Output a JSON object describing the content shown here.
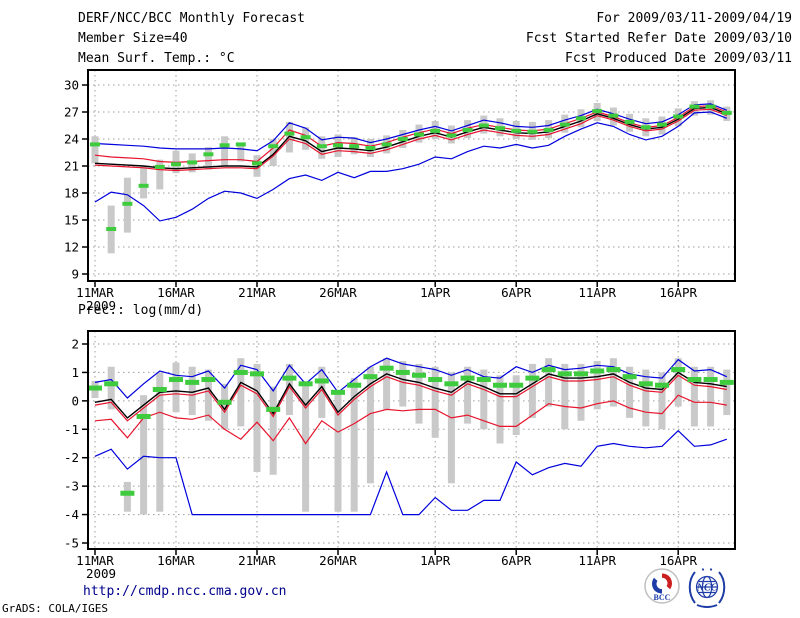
{
  "header": {
    "title": "DERF/NCC/BCC Monthly Forecast",
    "member_size": "Member Size=40",
    "panel1_label": "Mean Surf. Temp.: °C",
    "for_range": "For 2009/03/11-2009/04/19",
    "fcst_started": "Fcst Started Refer Date 2009/03/10",
    "fcst_produced": "Fcst Produced Date 2009/03/11"
  },
  "panel2_label": "Prec.: log(mm/d)",
  "footer": {
    "url": "http://cmdp.ncc.cma.gov.cn",
    "grads_credit": "GrADS: COLA/IGES",
    "logos": [
      {
        "label": "BCC"
      },
      {
        "label": "NCC"
      }
    ]
  },
  "colors": {
    "line_blue": "#0000dd",
    "line_red": "#e8142d",
    "line_black": "#000000",
    "obs_green": "#3ecc3e",
    "bar_gray": "#c9c9c9",
    "grid_gray": "#9e9e9e",
    "url_blue": "#00008b",
    "logo_blue": "#1f3da6",
    "logo_red": "#cc2020"
  },
  "chart_data": [
    {
      "type": "line",
      "title": "Mean Surf. Temp.: °C",
      "ylabel": "°C",
      "grid": true,
      "legend": "none",
      "ylim": [
        8.2,
        31.7
      ],
      "y_ticks": [
        9,
        12,
        15,
        18,
        21,
        24,
        27,
        30
      ],
      "x_tick_labels": [
        "11MAR",
        "16MAR",
        "21MAR",
        "26MAR",
        "1APR",
        "6APR",
        "11APR",
        "16APR"
      ],
      "x_tick_days": [
        0,
        5,
        10,
        15,
        21,
        26,
        31,
        36
      ],
      "x_sub_label": "2009",
      "dates": [
        "11MAR",
        "12MAR",
        "13MAR",
        "14MAR",
        "15MAR",
        "16MAR",
        "17MAR",
        "18MAR",
        "19MAR",
        "20MAR",
        "21MAR",
        "22MAR",
        "23MAR",
        "24MAR",
        "25MAR",
        "26MAR",
        "27MAR",
        "28MAR",
        "29MAR",
        "30MAR",
        "31MAR",
        "1APR",
        "2APR",
        "3APR",
        "4APR",
        "5APR",
        "6APR",
        "7APR",
        "8APR",
        "9APR",
        "10APR",
        "11APR",
        "12APR",
        "13APR",
        "14APR",
        "15APR",
        "16APR",
        "17APR",
        "18APR",
        "19APR"
      ],
      "series": [
        {
          "name": "upper-blue-envelope",
          "color": "#0000dd",
          "width": 1.2,
          "values": [
            23.5,
            23.4,
            23.3,
            23.2,
            23.0,
            22.9,
            22.9,
            22.9,
            23.0,
            22.9,
            22.7,
            23.8,
            25.8,
            25.2,
            23.9,
            24.2,
            24.1,
            23.6,
            24.0,
            24.5,
            25.0,
            25.4,
            24.9,
            25.5,
            26.1,
            25.8,
            25.4,
            25.3,
            25.5,
            26.1,
            26.6,
            27.3,
            26.8,
            26.2,
            25.7,
            25.9,
            26.7,
            27.8,
            27.9,
            27.2
          ]
        },
        {
          "name": "upper-red-band",
          "color": "#e8142d",
          "width": 1.2,
          "values": [
            22.2,
            22.0,
            21.9,
            21.8,
            21.5,
            21.4,
            21.5,
            21.6,
            21.7,
            21.7,
            21.5,
            23.0,
            25.0,
            24.4,
            23.2,
            23.6,
            23.5,
            23.2,
            23.6,
            24.2,
            24.7,
            25.1,
            24.6,
            25.2,
            25.6,
            25.3,
            25.0,
            24.9,
            25.1,
            25.7,
            26.3,
            27.0,
            26.5,
            25.8,
            25.3,
            25.5,
            26.4,
            27.6,
            27.7,
            27.0
          ]
        },
        {
          "name": "ensemble-mean-black",
          "color": "#000000",
          "width": 1.4,
          "values": [
            21.3,
            21.2,
            21.1,
            21.0,
            20.8,
            20.7,
            20.8,
            20.9,
            21.0,
            21.0,
            20.9,
            22.3,
            24.3,
            23.8,
            22.6,
            23.0,
            22.9,
            22.7,
            23.1,
            23.7,
            24.3,
            24.7,
            24.2,
            24.8,
            25.3,
            25.0,
            24.7,
            24.6,
            24.8,
            25.4,
            26.0,
            26.8,
            26.3,
            25.6,
            25.1,
            25.3,
            26.2,
            27.4,
            27.5,
            26.8
          ]
        },
        {
          "name": "lower-red-band",
          "color": "#e8142d",
          "width": 1.2,
          "values": [
            21.1,
            21.0,
            20.9,
            20.8,
            20.6,
            20.5,
            20.6,
            20.7,
            20.8,
            20.8,
            20.7,
            22.1,
            24.0,
            23.5,
            22.3,
            22.7,
            22.6,
            22.4,
            22.8,
            23.4,
            24.0,
            24.4,
            23.9,
            24.5,
            25.0,
            24.7,
            24.4,
            24.3,
            24.5,
            25.1,
            25.7,
            26.6,
            26.1,
            25.4,
            24.9,
            25.1,
            26.0,
            27.2,
            27.3,
            26.6
          ]
        },
        {
          "name": "lower-blue-envelope",
          "color": "#0000dd",
          "width": 1.2,
          "values": [
            17.0,
            18.1,
            17.8,
            16.6,
            14.9,
            15.3,
            16.2,
            17.4,
            18.2,
            18.0,
            17.4,
            18.4,
            19.6,
            20.0,
            19.4,
            20.3,
            19.7,
            20.4,
            20.4,
            20.7,
            21.2,
            22.0,
            21.8,
            22.6,
            23.2,
            23.0,
            23.4,
            23.0,
            23.3,
            24.3,
            25.1,
            25.8,
            25.4,
            24.5,
            23.9,
            24.3,
            25.4,
            26.9,
            27.0,
            26.3
          ]
        }
      ],
      "bars": {
        "name": "gray-spread-bars",
        "color": "#c9c9c9",
        "lo": [
          21.3,
          11.3,
          13.6,
          17.4,
          18.4,
          20.2,
          20.3,
          20.6,
          21.0,
          21.5,
          19.8,
          21.0,
          22.5,
          22.8,
          21.8,
          22.0,
          22.3,
          22.0,
          22.4,
          23.0,
          23.6,
          24.0,
          23.5,
          24.1,
          24.6,
          24.3,
          24.0,
          23.9,
          24.1,
          24.7,
          25.3,
          26.0,
          25.5,
          24.8,
          24.3,
          24.5,
          25.4,
          26.6,
          26.7,
          26.0
        ],
        "hi": [
          24.3,
          16.6,
          19.7,
          21.0,
          21.7,
          22.7,
          22.4,
          23.1,
          24.3,
          23.5,
          22.2,
          24.0,
          25.9,
          25.3,
          24.3,
          24.5,
          24.2,
          24.0,
          24.4,
          25.0,
          25.6,
          26.0,
          25.5,
          26.1,
          26.6,
          26.3,
          26.0,
          25.9,
          26.1,
          26.7,
          27.3,
          28.0,
          27.5,
          26.8,
          26.3,
          26.5,
          27.4,
          28.2,
          28.3,
          27.6
        ]
      },
      "dashes": {
        "name": "green-dash-markers",
        "color": "#3ecc3e",
        "values": [
          23.4,
          14.0,
          16.8,
          18.8,
          20.9,
          21.2,
          21.4,
          22.3,
          23.3,
          23.4,
          21.3,
          23.2,
          24.6,
          24.2,
          23.2,
          23.3,
          23.2,
          23.0,
          23.4,
          24.0,
          24.5,
          24.9,
          24.4,
          25.0,
          25.5,
          25.2,
          24.9,
          24.8,
          25.0,
          25.6,
          26.3,
          27.1,
          26.6,
          25.9,
          25.3,
          25.6,
          26.5,
          27.6,
          27.6,
          26.9
        ]
      }
    },
    {
      "type": "line",
      "title": "Prec.: log(mm/d)",
      "ylabel": "log(mm/d)",
      "grid": true,
      "legend": "none",
      "ylim": [
        -5.2,
        2.5
      ],
      "y_ticks": [
        -5,
        -4,
        -3,
        -2,
        -1,
        0,
        1,
        2
      ],
      "x_tick_labels": [
        "11MAR",
        "16MAR",
        "21MAR",
        "26MAR",
        "1APR",
        "6APR",
        "11APR",
        "16APR"
      ],
      "x_tick_days": [
        0,
        5,
        10,
        15,
        21,
        26,
        31,
        36
      ],
      "x_sub_label": "2009",
      "dates": [
        "11MAR",
        "12MAR",
        "13MAR",
        "14MAR",
        "15MAR",
        "16MAR",
        "17MAR",
        "18MAR",
        "19MAR",
        "20MAR",
        "21MAR",
        "22MAR",
        "23MAR",
        "24MAR",
        "25MAR",
        "26MAR",
        "27MAR",
        "28MAR",
        "29MAR",
        "30MAR",
        "31MAR",
        "1APR",
        "2APR",
        "3APR",
        "4APR",
        "5APR",
        "6APR",
        "7APR",
        "8APR",
        "9APR",
        "10APR",
        "11APR",
        "12APR",
        "13APR",
        "14APR",
        "15APR",
        "16APR",
        "17APR",
        "18APR",
        "19APR"
      ],
      "series": [
        {
          "name": "upper-blue-envelope",
          "color": "#0000dd",
          "width": 1.2,
          "values": [
            0.65,
            0.75,
            0.1,
            0.6,
            1.05,
            0.9,
            0.85,
            1.05,
            0.45,
            1.25,
            1.1,
            0.35,
            1.25,
            0.6,
            1.1,
            0.3,
            0.75,
            1.2,
            1.5,
            1.3,
            1.2,
            1.1,
            0.9,
            1.1,
            0.85,
            0.8,
            1.2,
            1.0,
            1.25,
            1.1,
            1.15,
            1.25,
            1.2,
            0.95,
            0.85,
            0.8,
            1.45,
            1.05,
            1.1,
            0.85
          ]
        },
        {
          "name": "upper-red-band",
          "color": "#e8142d",
          "width": 1.2,
          "values": [
            -0.15,
            -0.05,
            -0.7,
            -0.25,
            0.2,
            0.25,
            0.2,
            0.35,
            -0.4,
            0.55,
            0.25,
            -0.55,
            0.5,
            -0.25,
            0.4,
            -0.5,
            0.05,
            0.5,
            0.85,
            0.65,
            0.55,
            0.35,
            0.2,
            0.6,
            0.4,
            0.15,
            0.15,
            0.5,
            0.85,
            0.7,
            0.7,
            0.75,
            0.85,
            0.55,
            0.35,
            0.3,
            0.9,
            0.55,
            0.5,
            0.4
          ]
        },
        {
          "name": "ensemble-mean-black",
          "color": "#000000",
          "width": 1.4,
          "values": [
            -0.05,
            0.05,
            -0.6,
            -0.15,
            0.3,
            0.35,
            0.3,
            0.45,
            -0.3,
            0.65,
            0.35,
            -0.45,
            0.6,
            -0.15,
            0.5,
            -0.4,
            0.15,
            0.6,
            0.95,
            0.75,
            0.65,
            0.45,
            0.3,
            0.7,
            0.5,
            0.25,
            0.25,
            0.6,
            0.95,
            0.8,
            0.8,
            0.85,
            0.95,
            0.65,
            0.45,
            0.4,
            1.0,
            0.65,
            0.6,
            0.5
          ]
        },
        {
          "name": "lower-red-band",
          "color": "#e8142d",
          "width": 1.2,
          "values": [
            -0.7,
            -0.65,
            -1.3,
            -0.6,
            -0.4,
            -0.6,
            -0.65,
            -0.5,
            -1.0,
            -1.35,
            -0.75,
            -1.4,
            -0.6,
            -1.5,
            -0.7,
            -1.1,
            -0.8,
            -0.45,
            -0.3,
            -0.35,
            -0.3,
            -0.3,
            -0.6,
            -0.5,
            -0.7,
            -0.9,
            -0.9,
            -0.5,
            -0.1,
            -0.2,
            -0.25,
            -0.1,
            0.0,
            -0.25,
            -0.4,
            -0.45,
            0.2,
            -0.05,
            -0.05,
            -0.15
          ]
        },
        {
          "name": "lower-blue-envelope",
          "color": "#0000dd",
          "width": 1.2,
          "values": [
            -1.95,
            -1.7,
            -2.4,
            -1.95,
            -2.0,
            -2.0,
            -4.0,
            -4.0,
            -4.0,
            -4.0,
            -4.0,
            -4.0,
            -4.0,
            -4.0,
            -4.0,
            -4.0,
            -4.0,
            -4.0,
            -2.5,
            -4.0,
            -4.0,
            -3.4,
            -3.85,
            -3.85,
            -3.5,
            -3.5,
            -2.15,
            -2.6,
            -2.35,
            -2.2,
            -2.3,
            -1.6,
            -1.5,
            -1.6,
            -1.65,
            -1.6,
            -1.05,
            -1.6,
            -1.55,
            -1.35
          ]
        }
      ],
      "bars": {
        "name": "gray-spread-bars",
        "color": "#c9c9c9",
        "lo": [
          0.1,
          -0.3,
          -3.9,
          -4.0,
          -3.9,
          -0.4,
          -0.5,
          -0.7,
          -1.0,
          -0.9,
          -2.5,
          -2.6,
          -0.5,
          -3.9,
          -0.6,
          -3.9,
          -3.9,
          -2.9,
          -0.3,
          -0.2,
          -0.8,
          -1.3,
          -2.9,
          -0.8,
          -1.0,
          -1.5,
          -1.2,
          -0.6,
          -0.2,
          -1.0,
          -0.7,
          -0.3,
          -0.2,
          -0.6,
          -0.9,
          -1.0,
          -0.2,
          -0.9,
          -0.9,
          -0.5
        ],
        "hi": [
          0.7,
          1.2,
          -2.85,
          0.2,
          1.0,
          1.35,
          1.2,
          1.1,
          0.6,
          1.5,
          1.3,
          0.5,
          1.3,
          0.6,
          1.2,
          0.3,
          0.8,
          1.2,
          1.5,
          1.4,
          1.3,
          1.2,
          1.0,
          1.2,
          1.1,
          0.9,
          0.9,
          1.3,
          1.5,
          1.3,
          1.3,
          1.4,
          1.5,
          1.2,
          1.1,
          1.0,
          1.5,
          1.2,
          1.2,
          1.1
        ]
      },
      "dashes": {
        "name": "green-dash-markers",
        "color": "#3ecc3e",
        "values": [
          0.45,
          0.6,
          -3.25,
          -0.55,
          0.4,
          0.75,
          0.65,
          0.75,
          -0.05,
          1.0,
          0.95,
          -0.3,
          0.8,
          0.6,
          0.7,
          0.3,
          0.55,
          0.85,
          1.15,
          1.0,
          0.9,
          0.75,
          0.6,
          0.8,
          0.75,
          0.55,
          0.55,
          0.8,
          1.1,
          0.95,
          0.95,
          1.05,
          1.1,
          0.85,
          0.6,
          0.55,
          1.1,
          0.75,
          0.75,
          0.65
        ]
      }
    }
  ]
}
